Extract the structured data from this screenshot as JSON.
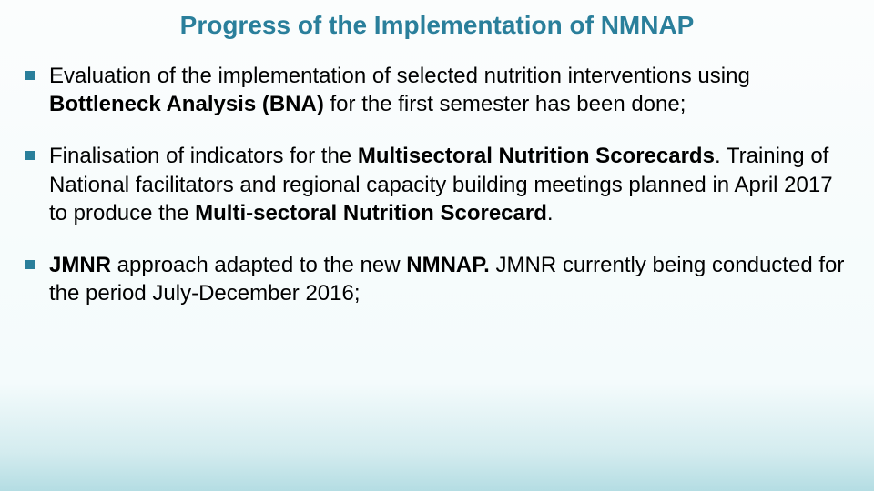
{
  "slide": {
    "title": "Progress of the Implementation of NMNAP",
    "title_color": "#2a7f9b",
    "title_fontsize": 28,
    "body_fontsize": 24,
    "body_color": "#000000",
    "bullet_color": "#2a7f9b",
    "background_gradient_top": "#fbfdfd",
    "background_gradient_bottom": "#b4dde3",
    "bullets": [
      {
        "runs": [
          {
            "text": "Evaluation of the implementation of selected nutrition interventions using ",
            "bold": false
          },
          {
            "text": "Bottleneck Analysis (BNA) ",
            "bold": true
          },
          {
            "text": "for the first semester has been done;",
            "bold": false
          }
        ]
      },
      {
        "runs": [
          {
            "text": "Finalisation of indicators for the ",
            "bold": false
          },
          {
            "text": "Multisectoral Nutrition Scorecards",
            "bold": true
          },
          {
            "text": ". Training of National facilitators and regional capacity building meetings planned in April 2017 to produce the ",
            "bold": false
          },
          {
            "text": "Multi-sectoral Nutrition Scorecard",
            "bold": true
          },
          {
            "text": ".",
            "bold": false
          }
        ]
      },
      {
        "runs": [
          {
            "text": "JMNR ",
            "bold": true
          },
          {
            "text": "approach adapted to the new ",
            "bold": false
          },
          {
            "text": "NMNAP. ",
            "bold": true
          },
          {
            "text": "JMNR currently being conducted for the period July-December 2016;",
            "bold": false
          }
        ]
      }
    ]
  }
}
